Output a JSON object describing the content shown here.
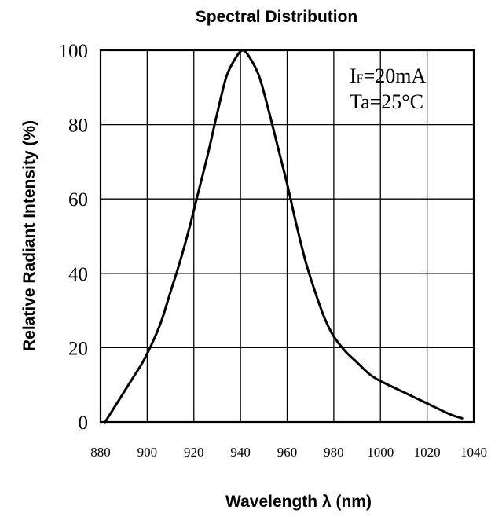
{
  "chart_data": {
    "type": "line",
    "title": "Spectral Distribution",
    "xlabel": "Wavelength λ (nm)",
    "ylabel": "Relative Radiant Intensity (%)",
    "xlim": [
      880,
      1040
    ],
    "ylim": [
      0,
      100
    ],
    "x_ticks": [
      880,
      900,
      920,
      940,
      960,
      980,
      1000,
      1020,
      1040
    ],
    "y_ticks": [
      0,
      20,
      40,
      60,
      80,
      100
    ],
    "grid": true,
    "annotations": {
      "line1_main": "I",
      "line1_sub": "F",
      "line1_rest": "=20mA",
      "line2": "Ta=25°C"
    },
    "series": [
      {
        "x": [
          882,
          886,
          890,
          894,
          898,
          902,
          906,
          910,
          914,
          918,
          922,
          926,
          930,
          934,
          938,
          941,
          944,
          948,
          952,
          956,
          960,
          964,
          968,
          972,
          976,
          980,
          985,
          990,
          995,
          1000,
          1010,
          1020,
          1030,
          1035
        ],
        "y": [
          0,
          4,
          8,
          12,
          16,
          21,
          27,
          35,
          43,
          52,
          62,
          72,
          83,
          93,
          98,
          100,
          98,
          93,
          84,
          74,
          64,
          53,
          43,
          35,
          28,
          23,
          19,
          16,
          13,
          11,
          8,
          5,
          2,
          1
        ]
      }
    ],
    "color": "#000000"
  }
}
